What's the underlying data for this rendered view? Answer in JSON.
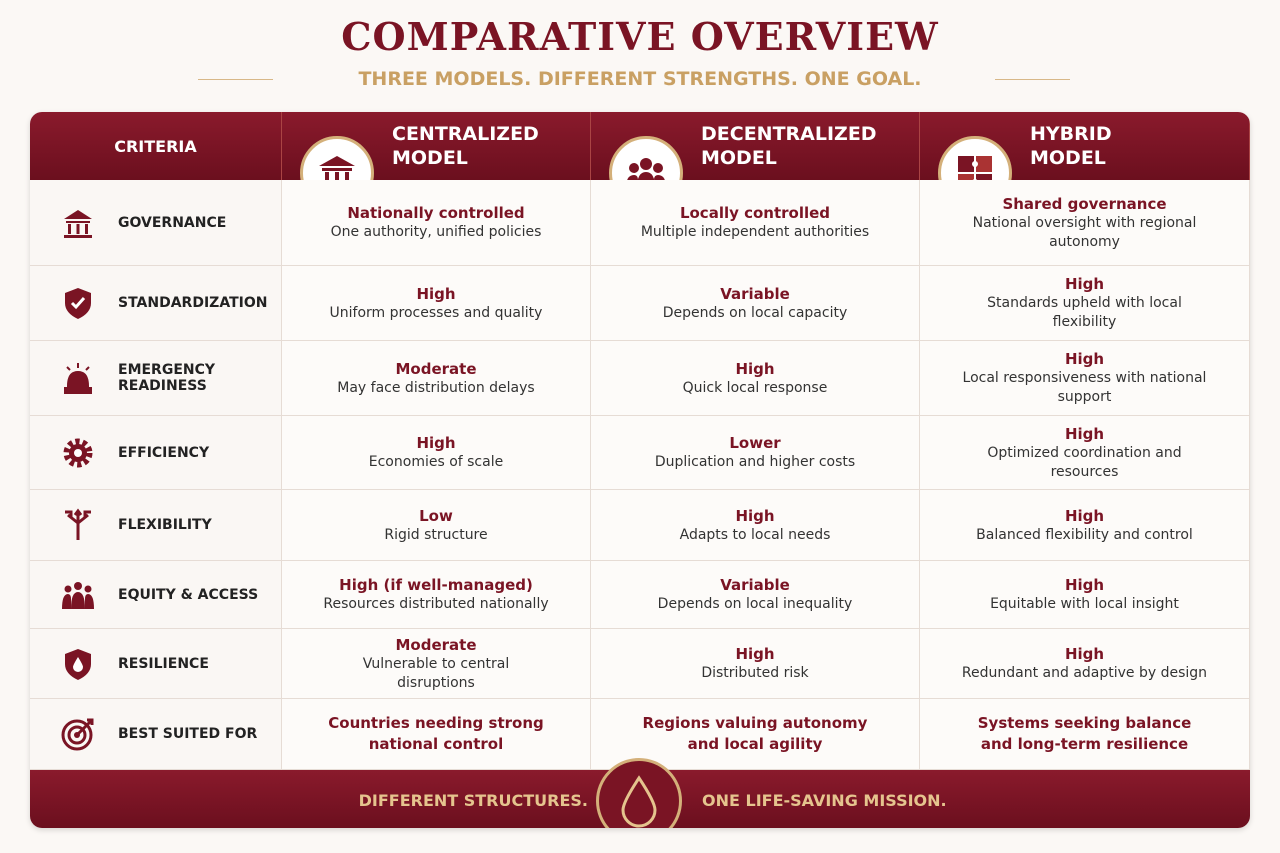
{
  "header": {
    "title": "COMPARATIVE OVERVIEW",
    "subtitle": "THREE MODELS. DIFFERENT STRENGTHS. ONE GOAL."
  },
  "table": {
    "columns": [
      "CRITERIA",
      "CENTRALIZED MODEL",
      "DECENTRALIZED MODEL",
      "HYBRID MODEL"
    ],
    "rows": [
      {
        "criterion": "GOVERNANCE",
        "cells": [
          {
            "rating": "Nationally controlled",
            "detail": "One authority, unified policies"
          },
          {
            "rating": "Locally controlled",
            "detail": "Multiple independent authorities"
          },
          {
            "rating": "Shared governance",
            "detail": "National oversight with regional autonomy"
          }
        ]
      },
      {
        "criterion": "STANDARDIZATION",
        "cells": [
          {
            "rating": "High",
            "detail": "Uniform processes and quality"
          },
          {
            "rating": "Variable",
            "detail": "Depends on local capacity"
          },
          {
            "rating": "High",
            "detail": "Standards upheld with local flexibility"
          }
        ]
      },
      {
        "criterion": "EMERGENCY READINESS",
        "cells": [
          {
            "rating": "Moderate",
            "detail": "May face distribution delays"
          },
          {
            "rating": "High",
            "detail": "Quick local response"
          },
          {
            "rating": "High",
            "detail": "Local responsiveness with national support"
          }
        ]
      },
      {
        "criterion": "EFFICIENCY",
        "cells": [
          {
            "rating": "High",
            "detail": "Economies of scale"
          },
          {
            "rating": "Lower",
            "detail": "Duplication and higher costs"
          },
          {
            "rating": "High",
            "detail": "Optimized coordination and resources"
          }
        ]
      },
      {
        "criterion": "FLEXIBILITY",
        "cells": [
          {
            "rating": "Low",
            "detail": "Rigid structure"
          },
          {
            "rating": "High",
            "detail": "Adapts to local needs"
          },
          {
            "rating": "High",
            "detail": "Balanced flexibility and control"
          }
        ]
      },
      {
        "criterion": "EQUITY & ACCESS",
        "cells": [
          {
            "rating": "High (if well-managed)",
            "detail": "Resources distributed nationally"
          },
          {
            "rating": "Variable",
            "detail": "Depends on local inequality"
          },
          {
            "rating": "High",
            "detail": "Equitable with local insight"
          }
        ]
      },
      {
        "criterion": "RESILIENCE",
        "cells": [
          {
            "rating": "Moderate",
            "detail": "Vulnerable to central disruptions"
          },
          {
            "rating": "High",
            "detail": "Distributed risk"
          },
          {
            "rating": "High",
            "detail": "Redundant and adaptive by design"
          }
        ]
      },
      {
        "criterion": "BEST SUITED FOR",
        "cells": [
          {
            "rating": "Countries needing strong national control"
          },
          {
            "rating": "Regions valuing autonomy and local agility"
          },
          {
            "rating": "Systems seeking balance and long-term resilience"
          }
        ]
      }
    ]
  },
  "footer": {
    "left": "DIFFERENT STRUCTURES.",
    "right": "ONE LIFE-SAVING MISSION."
  }
}
